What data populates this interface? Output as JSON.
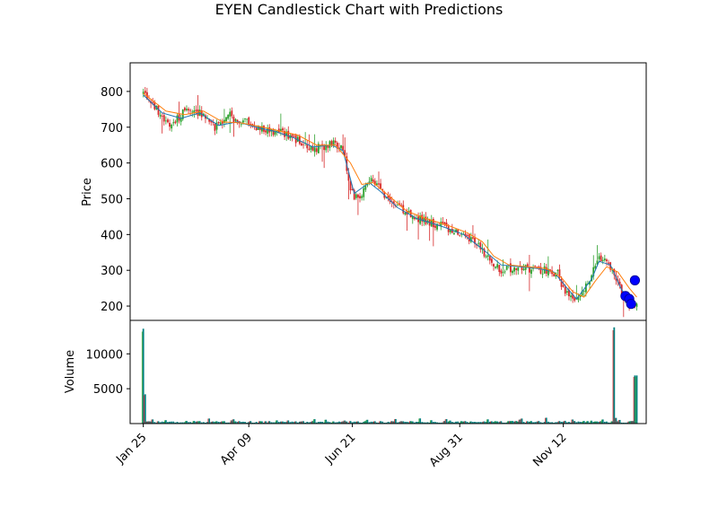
{
  "chart_data": {
    "type": "candlestick",
    "title": "EYEN Candlestick Chart with Predictions",
    "price_panel": {
      "ylabel": "Price",
      "ylim": [
        160,
        880
      ],
      "yticks": [
        200,
        300,
        400,
        500,
        600,
        700,
        800
      ],
      "close_anchor_points": [
        [
          0,
          795
        ],
        [
          5,
          770
        ],
        [
          10,
          720
        ],
        [
          16,
          710
        ],
        [
          22,
          745
        ],
        [
          27,
          750
        ],
        [
          32,
          730
        ],
        [
          38,
          695
        ],
        [
          45,
          740
        ],
        [
          50,
          705
        ],
        [
          55,
          715
        ],
        [
          60,
          700
        ],
        [
          66,
          688
        ],
        [
          72,
          685
        ],
        [
          78,
          675
        ],
        [
          84,
          655
        ],
        [
          90,
          640
        ],
        [
          96,
          648
        ],
        [
          102,
          655
        ],
        [
          106,
          640
        ],
        [
          110,
          520
        ],
        [
          115,
          490
        ],
        [
          120,
          560
        ],
        [
          125,
          530
        ],
        [
          130,
          500
        ],
        [
          136,
          480
        ],
        [
          142,
          450
        ],
        [
          150,
          440
        ],
        [
          160,
          420
        ],
        [
          168,
          400
        ],
        [
          176,
          380
        ],
        [
          182,
          340
        ],
        [
          190,
          300
        ],
        [
          198,
          310
        ],
        [
          206,
          305
        ],
        [
          214,
          300
        ],
        [
          220,
          290
        ],
        [
          224,
          240
        ],
        [
          230,
          215
        ],
        [
          236,
          270
        ],
        [
          242,
          330
        ],
        [
          246,
          325
        ],
        [
          250,
          290
        ],
        [
          254,
          230
        ],
        [
          258,
          200
        ],
        [
          262,
          215
        ]
      ],
      "ma_fast": {
        "color": "#1f77b4",
        "points": [
          [
            0,
            790
          ],
          [
            10,
            740
          ],
          [
            20,
            725
          ],
          [
            30,
            740
          ],
          [
            40,
            705
          ],
          [
            50,
            715
          ],
          [
            60,
            700
          ],
          [
            70,
            688
          ],
          [
            80,
            670
          ],
          [
            90,
            645
          ],
          [
            100,
            650
          ],
          [
            106,
            635
          ],
          [
            112,
            515
          ],
          [
            120,
            545
          ],
          [
            126,
            520
          ],
          [
            135,
            475
          ],
          [
            145,
            445
          ],
          [
            160,
            420
          ],
          [
            170,
            400
          ],
          [
            180,
            360
          ],
          [
            190,
            315
          ],
          [
            200,
            310
          ],
          [
            210,
            305
          ],
          [
            218,
            295
          ],
          [
            225,
            250
          ],
          [
            230,
            220
          ],
          [
            238,
            275
          ],
          [
            242,
            325
          ],
          [
            248,
            315
          ],
          [
            254,
            245
          ],
          [
            260,
            210
          ]
        ]
      },
      "ma_slow": {
        "color": "#ff7f0e",
        "points": [
          [
            0,
            795
          ],
          [
            12,
            745
          ],
          [
            22,
            735
          ],
          [
            32,
            745
          ],
          [
            42,
            715
          ],
          [
            52,
            712
          ],
          [
            62,
            702
          ],
          [
            72,
            690
          ],
          [
            82,
            678
          ],
          [
            92,
            650
          ],
          [
            102,
            650
          ],
          [
            110,
            600
          ],
          [
            116,
            540
          ],
          [
            122,
            545
          ],
          [
            130,
            510
          ],
          [
            140,
            465
          ],
          [
            150,
            445
          ],
          [
            162,
            425
          ],
          [
            172,
            405
          ],
          [
            180,
            380
          ],
          [
            186,
            340
          ],
          [
            194,
            315
          ],
          [
            204,
            310
          ],
          [
            214,
            305
          ],
          [
            222,
            280
          ],
          [
            228,
            240
          ],
          [
            234,
            225
          ],
          [
            240,
            270
          ],
          [
            246,
            310
          ],
          [
            252,
            295
          ],
          [
            258,
            250
          ],
          [
            262,
            225
          ]
        ]
      },
      "predictions": [
        {
          "x": 256,
          "y": 228
        },
        {
          "x": 258,
          "y": 220
        },
        {
          "x": 259,
          "y": 206
        },
        {
          "x": 261,
          "y": 272
        }
      ]
    },
    "volume_panel": {
      "ylabel": "Volume",
      "ylim": [
        0,
        14800
      ],
      "yticks": [
        5000,
        10000
      ],
      "spikes": [
        {
          "x": 0,
          "value": 13600
        },
        {
          "x": 1,
          "value": 4200
        },
        {
          "x": 250,
          "value": 13800
        },
        {
          "x": 261,
          "value": 6900
        },
        {
          "x": 262,
          "value": 6900
        }
      ]
    },
    "x_axis": {
      "tick_labels": [
        "Jan 25",
        "Apr 09",
        "Jun 21",
        "Aug 31",
        "Nov 12"
      ],
      "tick_positions": [
        0,
        56,
        111,
        168,
        223
      ],
      "xlim": [
        -7,
        267
      ]
    },
    "colors": {
      "up": "#2ca02c",
      "down": "#d62728",
      "volume": "#008080",
      "prediction": "#0000ff"
    }
  }
}
